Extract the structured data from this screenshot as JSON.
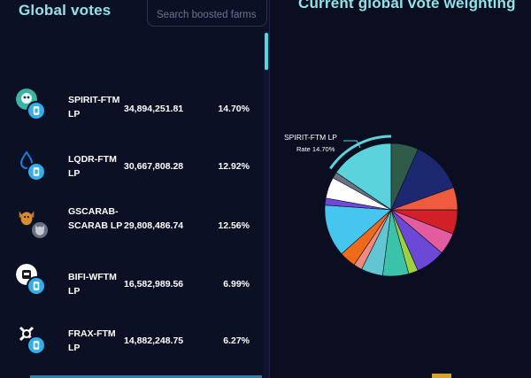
{
  "left": {
    "title": "Global votes",
    "search": {
      "placeholder": "Search boosted farms",
      "value": ""
    },
    "rows": [
      {
        "name": "SPIRIT-FTM LP",
        "votes": "34,894,251.81",
        "pct": "14.70%",
        "icon": "spirit-icon",
        "color": "#3ab5a4"
      },
      {
        "name": "LQDR-FTM LP",
        "votes": "30,667,808.28",
        "pct": "12.92%",
        "icon": "lqdr-droplet-icon",
        "color": "#1e7fe0"
      },
      {
        "name": "GSCARAB-SCARAB LP",
        "votes": "29,808,486.74",
        "pct": "12.56%",
        "icon": "scarab-icon",
        "color": "#c07a2a"
      },
      {
        "name": "BIFI-WFTM LP",
        "votes": "16,582,989.56",
        "pct": "6.99%",
        "icon": "bifi-icon",
        "color": "#ffffff"
      },
      {
        "name": "FRAX-FTM LP",
        "votes": "14,882,248.75",
        "pct": "6.27%",
        "icon": "frax-icon",
        "color": "#ffffff"
      }
    ]
  },
  "right": {
    "title": "Current global vote weighting",
    "tooltip": {
      "name": "SPIRIT-FTM LP",
      "rate": "Rate 14.70%"
    }
  },
  "chart_data": {
    "type": "pie",
    "slices": [
      {
        "value": 14.7,
        "color": "#5ad3dc"
      },
      {
        "value": 6.3,
        "color": "#2f5c48"
      },
      {
        "value": 12.2,
        "color": "#1c2870"
      },
      {
        "value": 5.2,
        "color": "#ef5b3e"
      },
      {
        "value": 5.6,
        "color": "#d21f28"
      },
      {
        "value": 5.0,
        "color": "#e25c9f"
      },
      {
        "value": 6.8,
        "color": "#6b48d6"
      },
      {
        "value": 2.2,
        "color": "#9bd23d"
      },
      {
        "value": 6.0,
        "color": "#3bc2a8"
      },
      {
        "value": 5.0,
        "color": "#61c6d2"
      },
      {
        "value": 2.0,
        "color": "#f08a7c"
      },
      {
        "value": 3.8,
        "color": "#ef6a1a"
      },
      {
        "value": 12.0,
        "color": "#46c6ee"
      },
      {
        "value": 1.6,
        "color": "#6e49d8"
      },
      {
        "value": 4.9,
        "color": "#ffffff"
      },
      {
        "value": 1.4,
        "color": "#6a7285"
      }
    ],
    "highlight": "SPIRIT-FTM LP"
  }
}
